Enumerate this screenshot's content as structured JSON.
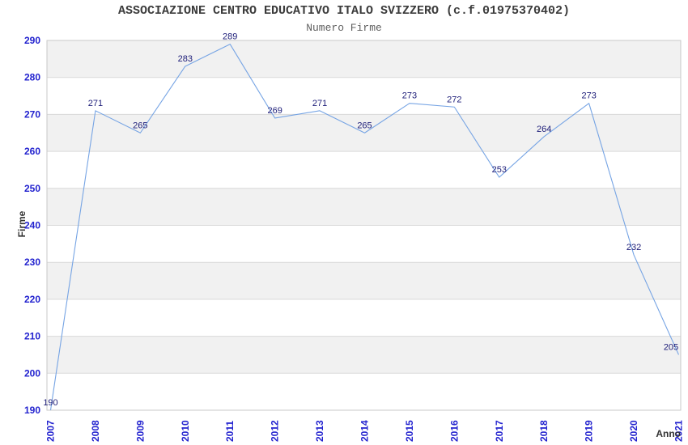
{
  "chart_data": {
    "type": "line",
    "title": "ASSOCIAZIONE CENTRO EDUCATIVO ITALO SVIZZERO (c.f.01975370402)",
    "subtitle": "Numero Firme",
    "xlabel": "Anno",
    "ylabel": "Firme",
    "categories": [
      "2007",
      "2008",
      "2009",
      "2010",
      "2011",
      "2012",
      "2013",
      "2014",
      "2015",
      "2016",
      "2017",
      "2018",
      "2019",
      "2020",
      "2021"
    ],
    "values": [
      190,
      271,
      265,
      283,
      289,
      269,
      271,
      265,
      273,
      272,
      253,
      264,
      273,
      232,
      205
    ],
    "ylim": [
      190,
      290
    ],
    "ytick_step": 10,
    "grid": true,
    "legend_position": "none",
    "colors": {
      "line": "#76a4e4",
      "band": "#f1f1f1",
      "gridline": "#d9d9d9",
      "border": "#c8c8c8",
      "tick_label": "#2323cf",
      "value_label": "#1c1c78",
      "title": "#3c3c3c",
      "subtitle": "#606060",
      "axis_name": "#333333"
    }
  }
}
